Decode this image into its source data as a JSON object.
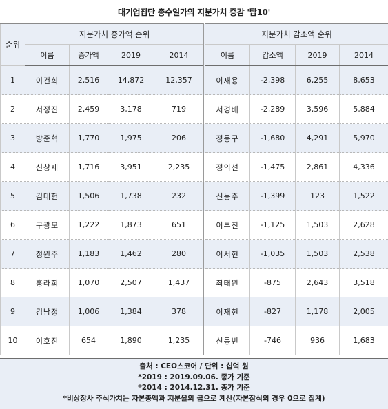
{
  "title": "대기업집단 총수일가의 지분가치 증감 '탑10'",
  "headers": {
    "rank": "순위",
    "increase_group": "지분가치 증가액 순위",
    "decrease_group": "지분가치 감소액 순위",
    "name": "이름",
    "increase": "증가액",
    "decrease": "감소액",
    "y2019": "2019",
    "y2014": "2014"
  },
  "rows": [
    {
      "rank": "1",
      "inc_name": "이건희",
      "inc": "2,516",
      "inc_2019": "14,872",
      "inc_2014": "12,357",
      "dec_name": "이재용",
      "dec": "-2,398",
      "dec_2019": "6,255",
      "dec_2014": "8,653"
    },
    {
      "rank": "2",
      "inc_name": "서정진",
      "inc": "2,459",
      "inc_2019": "3,178",
      "inc_2014": "719",
      "dec_name": "서경배",
      "dec": "-2,289",
      "dec_2019": "3,596",
      "dec_2014": "5,884"
    },
    {
      "rank": "3",
      "inc_name": "방준혁",
      "inc": "1,770",
      "inc_2019": "1,975",
      "inc_2014": "206",
      "dec_name": "정몽구",
      "dec": "-1,680",
      "dec_2019": "4,291",
      "dec_2014": "5,970"
    },
    {
      "rank": "4",
      "inc_name": "신창재",
      "inc": "1,716",
      "inc_2019": "3,951",
      "inc_2014": "2,235",
      "dec_name": "정의선",
      "dec": "-1,475",
      "dec_2019": "2,861",
      "dec_2014": "4,336"
    },
    {
      "rank": "5",
      "inc_name": "김대헌",
      "inc": "1,506",
      "inc_2019": "1,738",
      "inc_2014": "232",
      "dec_name": "신동주",
      "dec": "-1,399",
      "dec_2019": "123",
      "dec_2014": "1,522"
    },
    {
      "rank": "6",
      "inc_name": "구광모",
      "inc": "1,222",
      "inc_2019": "1,873",
      "inc_2014": "651",
      "dec_name": "이부진",
      "dec": "-1,125",
      "dec_2019": "1,503",
      "dec_2014": "2,628"
    },
    {
      "rank": "7",
      "inc_name": "정원주",
      "inc": "1,183",
      "inc_2019": "1,462",
      "inc_2014": "280",
      "dec_name": "이서현",
      "dec": "-1,035",
      "dec_2019": "1,503",
      "dec_2014": "2,538"
    },
    {
      "rank": "8",
      "inc_name": "홍라희",
      "inc": "1,070",
      "inc_2019": "2,507",
      "inc_2014": "1,437",
      "dec_name": "최태원",
      "dec": "-875",
      "dec_2019": "2,643",
      "dec_2014": "3,518"
    },
    {
      "rank": "9",
      "inc_name": "김남정",
      "inc": "1,006",
      "inc_2019": "1,384",
      "inc_2014": "378",
      "dec_name": "이재현",
      "dec": "-827",
      "dec_2019": "1,178",
      "dec_2014": "2,005"
    },
    {
      "rank": "10",
      "inc_name": "이호진",
      "inc": "654",
      "inc_2019": "1,890",
      "inc_2014": "1,235",
      "dec_name": "신동빈",
      "dec": "-746",
      "dec_2019": "936",
      "dec_2014": "1,683"
    }
  ],
  "footer": {
    "source": "출처 : CEO스코어 / 단위 : 십억 원",
    "note_2019": "*2019 : 2019.09.06. 종가 기준",
    "note_2014": "*2014 : 2014.12.31. 종가 기준",
    "note_unlisted": "*비상장사 주식가치는 자본총액과 지분율의 곱으로 계산(자본잠식의 경우 0으로 집계)"
  }
}
